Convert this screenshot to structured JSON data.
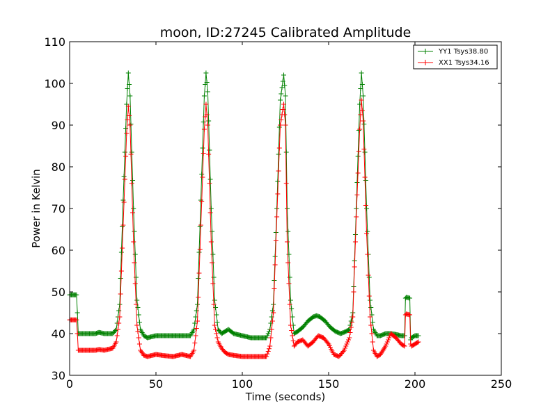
{
  "chart_data": {
    "type": "line",
    "title": "moon, ID:27245 Calibrated Amplitude",
    "xlabel": "Time (seconds)",
    "ylabel": "Power in Kelvin",
    "xlim": [
      0,
      250
    ],
    "ylim": [
      30,
      110
    ],
    "x_ticks": [
      "0",
      "50",
      "100",
      "150",
      "200",
      "250"
    ],
    "y_ticks": [
      "30",
      "40",
      "50",
      "60",
      "70",
      "80",
      "90",
      "100",
      "110"
    ],
    "grid": false,
    "legend_position": "top-right",
    "marker": "plus",
    "series": [
      {
        "name": "YY1 Tsys38.80",
        "color": "#008000",
        "x": [
          0,
          4,
          4.5,
          5,
          10,
          15,
          17,
          20,
          25,
          27,
          29,
          31,
          33,
          34,
          35,
          37,
          39,
          41,
          43,
          45,
          50,
          55,
          60,
          65,
          70,
          72,
          74,
          76,
          78,
          79,
          80,
          82,
          84,
          86,
          88,
          90,
          92,
          95,
          100,
          105,
          110,
          114,
          116,
          118,
          120,
          122,
          124,
          125,
          126,
          128,
          130,
          132,
          135,
          138,
          141,
          143,
          145,
          148,
          151,
          154,
          157,
          160,
          162,
          164,
          166,
          168,
          169,
          170,
          172,
          174,
          176,
          178,
          180,
          183,
          186,
          189,
          192,
          194,
          194.5,
          195,
          197,
          197.5,
          198,
          200,
          202
        ],
        "y": [
          49.3,
          49.3,
          45,
          40,
          40,
          40,
          40.3,
          40,
          40,
          41,
          47,
          72,
          95,
          102.5,
          97,
          70,
          48,
          41,
          39.5,
          39,
          39.5,
          39.5,
          39.5,
          39.5,
          39.5,
          41,
          47,
          72,
          97,
          102.5,
          98,
          70,
          48,
          41,
          40,
          40.5,
          41,
          40,
          39.5,
          39,
          39,
          39,
          41,
          47,
          70,
          96,
          102,
          97,
          70,
          48,
          40,
          40.5,
          41.5,
          43,
          44,
          44.3,
          44,
          43,
          41.5,
          40.5,
          40,
          40.5,
          41,
          45,
          70,
          95,
          102.5,
          97,
          70,
          48,
          41,
          39.5,
          39.5,
          40,
          40,
          39.8,
          39.5,
          39.5,
          48.5,
          48.7,
          48.5,
          38.5,
          39,
          39.5,
          39.5
        ]
      },
      {
        "name": "XX1 Tsys34.16",
        "color": "#ff0000",
        "x": [
          0,
          4,
          4.5,
          5,
          10,
          15,
          17,
          20,
          25,
          27,
          29,
          31,
          33,
          34,
          35,
          37,
          39,
          41,
          43,
          45,
          50,
          55,
          60,
          65,
          70,
          72,
          74,
          76,
          78,
          79,
          80,
          82,
          84,
          86,
          88,
          90,
          92,
          95,
          100,
          105,
          110,
          114,
          116,
          118,
          120,
          122,
          124,
          125,
          126,
          128,
          130,
          132,
          135,
          138,
          141,
          144,
          147,
          150,
          153,
          156,
          159,
          162,
          164,
          166,
          168,
          169,
          170,
          172,
          174,
          176,
          178,
          180,
          183,
          186,
          189,
          192,
          194,
          194.5,
          195,
          197,
          197.5,
          198,
          200,
          202
        ],
        "y": [
          43.3,
          43.3,
          40,
          36,
          36,
          36,
          36.2,
          36,
          36.5,
          38,
          44,
          66,
          88,
          94.5,
          90,
          62,
          42,
          36,
          34.8,
          34.5,
          35,
          34.7,
          34.5,
          35,
          34.5,
          36,
          43,
          66,
          89,
          95,
          90,
          62,
          42,
          38,
          36.5,
          35.5,
          35,
          34.8,
          34.5,
          34.5,
          34.5,
          34.5,
          37,
          45,
          68,
          90,
          95,
          90,
          62,
          42,
          37,
          38,
          38.5,
          37,
          38,
          39.5,
          39,
          37.5,
          35,
          34.5,
          36,
          39,
          44,
          68,
          89,
          96,
          91,
          64,
          44,
          36,
          34.5,
          35,
          37,
          40,
          39,
          37.5,
          37,
          44.5,
          44.7,
          44.5,
          37.5,
          37,
          37.5,
          38
        ]
      }
    ]
  }
}
